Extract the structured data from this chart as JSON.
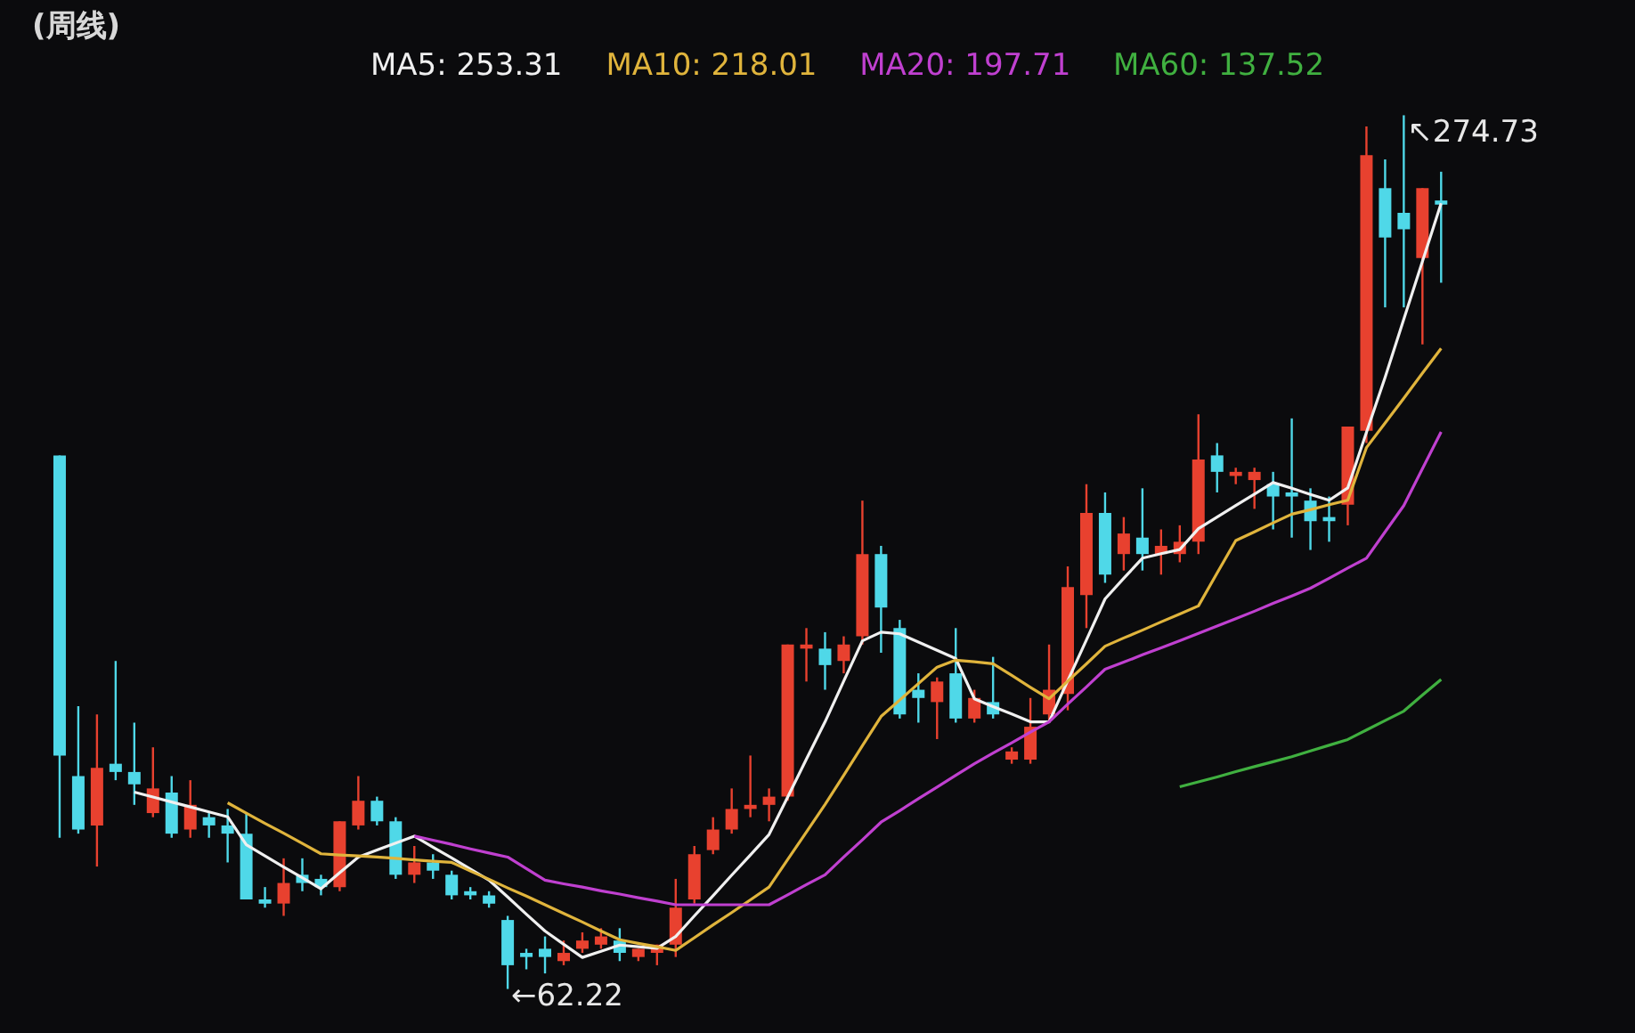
{
  "chart_data": {
    "type": "candlestick",
    "title": "(周线)",
    "categories": [
      null,
      null,
      null,
      null,
      null,
      null,
      null,
      null,
      null,
      null,
      null,
      null,
      null,
      null,
      null,
      null,
      null,
      null,
      null,
      null,
      null,
      null,
      null,
      null,
      null,
      null,
      null,
      null,
      null,
      null,
      null,
      null,
      null,
      null,
      null,
      null,
      null,
      null,
      null,
      null,
      null,
      null,
      null,
      null,
      null,
      null,
      null,
      null,
      null,
      null,
      null,
      null,
      null,
      null,
      null,
      null,
      null,
      null,
      null,
      null,
      null,
      null,
      null,
      null,
      null,
      null,
      null,
      null,
      null,
      null,
      null,
      null,
      null,
      null,
      null
    ],
    "ohlc": [
      [
        192,
        192,
        99,
        119
      ],
      [
        114,
        131,
        100,
        101
      ],
      [
        102,
        129,
        92,
        116
      ],
      [
        117,
        142,
        113,
        115
      ],
      [
        115,
        127,
        107,
        112
      ],
      [
        105,
        121,
        104,
        111
      ],
      [
        110,
        114,
        99,
        100
      ],
      [
        101,
        113,
        99,
        107
      ],
      [
        104,
        105,
        99,
        102
      ],
      [
        102,
        106,
        93,
        100
      ],
      [
        100,
        105,
        84,
        84
      ],
      [
        84,
        87,
        82,
        83
      ],
      [
        83,
        94,
        80,
        88
      ],
      [
        90,
        94,
        86,
        88
      ],
      [
        89,
        90,
        85,
        87
      ],
      [
        87,
        103,
        86,
        103
      ],
      [
        102,
        114,
        101,
        108
      ],
      [
        108,
        109,
        102,
        103
      ],
      [
        103,
        104,
        89,
        90
      ],
      [
        90,
        97,
        88,
        93
      ],
      [
        93,
        95,
        89,
        91
      ],
      [
        90,
        91,
        84,
        85
      ],
      [
        86,
        87,
        84,
        85
      ],
      [
        85,
        86,
        82,
        83
      ],
      [
        79,
        80,
        62.22,
        68
      ],
      [
        71,
        72,
        67,
        70
      ],
      [
        72,
        75,
        66,
        70
      ],
      [
        69,
        74,
        68,
        71
      ],
      [
        72,
        76,
        71,
        74
      ],
      [
        73,
        77,
        72,
        75
      ],
      [
        74,
        77,
        69,
        71
      ],
      [
        70,
        72,
        69,
        72
      ],
      [
        71,
        73,
        68,
        73
      ],
      [
        73,
        89,
        70,
        82
      ],
      [
        84,
        97,
        83,
        95
      ],
      [
        96,
        104,
        95,
        101
      ],
      [
        101,
        111,
        100,
        106
      ],
      [
        106,
        119,
        104,
        107
      ],
      [
        107,
        111,
        103,
        109
      ],
      [
        109,
        146,
        108,
        146
      ],
      [
        145,
        150,
        137,
        146
      ],
      [
        145,
        149,
        135,
        141
      ],
      [
        142,
        148,
        139,
        146
      ],
      [
        148,
        181,
        146,
        168
      ],
      [
        168,
        170,
        144,
        155
      ],
      [
        150,
        152,
        128,
        129
      ],
      [
        135,
        139,
        127,
        133
      ],
      [
        132,
        138,
        123,
        137
      ],
      [
        139,
        150,
        127,
        128
      ],
      [
        128,
        135,
        127,
        133
      ],
      [
        132,
        143,
        128,
        129
      ],
      [
        118,
        121,
        117,
        120
      ],
      [
        118,
        133,
        117,
        126
      ],
      [
        129,
        146,
        127,
        135
      ],
      [
        134,
        165,
        130,
        160
      ],
      [
        158,
        185,
        150,
        178
      ],
      [
        178,
        183,
        161,
        163
      ],
      [
        168,
        177,
        164,
        173
      ],
      [
        172,
        184,
        164,
        168
      ],
      [
        168,
        174,
        163,
        170
      ],
      [
        168,
        175,
        166,
        171
      ],
      [
        171,
        202,
        168,
        191
      ],
      [
        192,
        195,
        183,
        188
      ],
      [
        187,
        189,
        185,
        188
      ],
      [
        186,
        189,
        179,
        188
      ],
      [
        185,
        188,
        174,
        182
      ],
      [
        183,
        201,
        172,
        182
      ],
      [
        181,
        184,
        169,
        176
      ],
      [
        177,
        182,
        171,
        176
      ],
      [
        180,
        199,
        175,
        199
      ],
      [
        198,
        272,
        195,
        265
      ],
      [
        257,
        264,
        228,
        245
      ],
      [
        251,
        274.73,
        228,
        247
      ],
      [
        240,
        257,
        219,
        257
      ],
      [
        254,
        261,
        234,
        253
      ]
    ],
    "series": [
      {
        "name": "MA5: 253.31",
        "type": "line",
        "color": "#f0f0f0",
        "values": [
          null,
          null,
          null,
          null,
          110.1,
          108.9,
          107.7,
          106.5,
          105.3,
          104.1,
          97.3,
          94.6,
          91.9,
          89.3,
          86.6,
          90.5,
          94.3,
          96.0,
          97.7,
          99.4,
          96.7,
          94.1,
          91.4,
          88.7,
          84.6,
          80.4,
          76.3,
          73.1,
          69.9,
          71.4,
          72.9,
          72.5,
          72.1,
          75.0,
          80.0,
          84.9,
          89.9,
          94.8,
          99.8,
          108.9,
          118.1,
          127.2,
          137.1,
          146.9,
          149.0,
          148.6,
          146.6,
          144.6,
          142.6,
          132.8,
          130.9,
          129.1,
          127.2,
          127.2,
          137.2,
          147.1,
          157.1,
          162.1,
          167.0,
          168.1,
          169.1,
          174.2,
          177.0,
          179.8,
          182.6,
          185.4,
          184.0,
          182.5,
          181.1,
          184.1,
          197.6,
          211.0,
          225.1,
          239.2,
          253.31
        ]
      },
      {
        "name": "MA10: 218.01",
        "type": "line",
        "color": "#e0b43c",
        "values": [
          null,
          null,
          null,
          null,
          null,
          null,
          null,
          null,
          null,
          107.5,
          105.0,
          102.5,
          100.1,
          97.6,
          95.1,
          94.8,
          94.6,
          94.3,
          94.0,
          93.6,
          93.3,
          93.0,
          90.9,
          88.9,
          86.8,
          84.8,
          82.7,
          80.6,
          78.5,
          76.3,
          74.2,
          73.3,
          72.5,
          71.6,
          74.7,
          77.8,
          80.8,
          83.9,
          87.0,
          93.7,
          100.4,
          107.1,
          114.2,
          121.4,
          128.5,
          132.5,
          136.5,
          140.5,
          142.2,
          141.8,
          141.3,
          138.5,
          135.6,
          132.8,
          137.1,
          141.3,
          145.6,
          147.6,
          149.5,
          151.5,
          153.4,
          155.4,
          163.4,
          171.3,
          173.4,
          175.6,
          177.7,
          178.8,
          180.0,
          181.1,
          193.9,
          199.9,
          205.9,
          212.0,
          218.01
        ]
      },
      {
        "name": "MA20: 197.71",
        "type": "line",
        "color": "#c040d0",
        "values": [
          null,
          null,
          null,
          null,
          null,
          null,
          null,
          null,
          null,
          null,
          null,
          null,
          null,
          null,
          null,
          null,
          null,
          null,
          null,
          99.4,
          98.4,
          97.4,
          96.3,
          95.3,
          94.3,
          91.5,
          88.7,
          87.8,
          87.0,
          86.1,
          85.3,
          84.4,
          83.6,
          82.7,
          82.7,
          82.7,
          82.7,
          82.7,
          82.7,
          85.1,
          87.6,
          90.0,
          94.3,
          98.5,
          102.8,
          105.6,
          108.5,
          111.3,
          114.2,
          117.0,
          119.6,
          122.1,
          124.7,
          127.2,
          131.5,
          135.7,
          140.0,
          141.7,
          143.5,
          145.2,
          146.9,
          148.7,
          150.5,
          152.3,
          154.1,
          156.0,
          157.8,
          159.7,
          162.1,
          164.6,
          167.0,
          173.4,
          179.8,
          188.8,
          197.71
        ]
      },
      {
        "name": "MA60: 137.52",
        "type": "line",
        "color": "#40b040",
        "values": [
          null,
          null,
          null,
          null,
          null,
          null,
          null,
          null,
          null,
          null,
          null,
          null,
          null,
          null,
          null,
          null,
          null,
          null,
          null,
          null,
          null,
          null,
          null,
          null,
          null,
          null,
          null,
          null,
          null,
          null,
          null,
          null,
          null,
          null,
          null,
          null,
          null,
          null,
          null,
          null,
          null,
          null,
          null,
          null,
          null,
          null,
          null,
          null,
          null,
          null,
          null,
          null,
          null,
          null,
          null,
          null,
          null,
          null,
          null,
          null,
          111.4,
          112.6,
          113.8,
          115.1,
          116.3,
          117.5,
          118.7,
          120.1,
          121.5,
          122.9,
          125.2,
          127.5,
          129.8,
          133.7,
          137.52
        ]
      }
    ],
    "annotations": [
      "↖274.73",
      "←62.22"
    ],
    "tick_labels": false,
    "grid": false
  }
}
